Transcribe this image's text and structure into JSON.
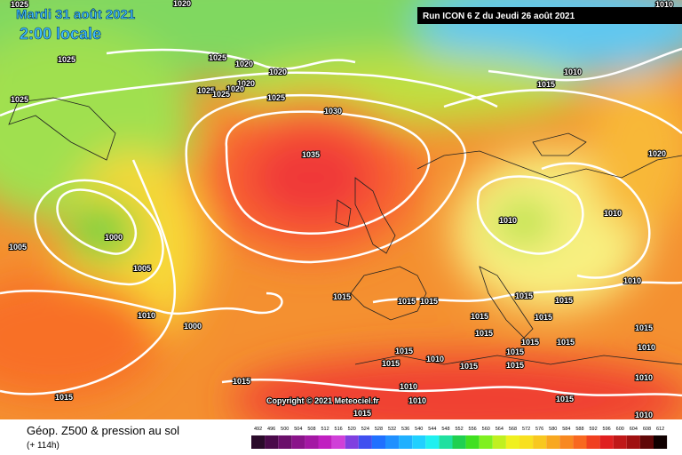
{
  "header": {
    "date": "Mardi 31 août 2021",
    "time": "2:00 locale",
    "run": "Run ICON 6 Z du Jeudi 26 août 2021"
  },
  "copyright": "Copyright © 2021 Meteociel.fr",
  "footer": {
    "title": "Géop. Z500 & pression au sol",
    "subtitle": "(+ 114h)"
  },
  "isobar_labels": [
    "1020",
    "1010",
    "1025",
    "1025",
    "1025",
    "1020",
    "1020",
    "1020",
    "1020",
    "1025",
    "1025",
    "1025",
    "1025",
    "1030",
    "1035",
    "1010",
    "1015",
    "1020",
    "1010",
    "1010",
    "1000",
    "1005",
    "1005",
    "1010",
    "1000",
    "1015",
    "1015",
    "1015",
    "1010",
    "1015",
    "1015",
    "1015",
    "1015",
    "1015",
    "1015",
    "1015",
    "1015",
    "1010",
    "1015",
    "1015",
    "1010",
    "1015",
    "1015",
    "1015",
    "1010",
    "1015",
    "1015",
    "1015",
    "1010",
    "1015",
    "1010",
    "1010"
  ],
  "scale": {
    "labels": [
      "492",
      "496",
      "500",
      "504",
      "508",
      "512",
      "516",
      "520",
      "524",
      "528",
      "532",
      "536",
      "540",
      "544",
      "548",
      "552",
      "556",
      "560",
      "564",
      "568",
      "572",
      "576",
      "580",
      "584",
      "588",
      "592",
      "596",
      "600",
      "604",
      "608",
      "612"
    ],
    "colors": [
      "#2a0a2a",
      "#4a0a4a",
      "#6a106a",
      "#8a148a",
      "#a418a4",
      "#c020c0",
      "#d040d8",
      "#8040e0",
      "#4050f0",
      "#2070ff",
      "#2090ff",
      "#20b0ff",
      "#20d0ff",
      "#20f0f0",
      "#20e0a0",
      "#20d050",
      "#40e020",
      "#80f020",
      "#c0f020",
      "#f0f020",
      "#f8e020",
      "#f8c820",
      "#f8a820",
      "#f88820",
      "#f86820",
      "#f04020",
      "#e02020",
      "#c01818",
      "#a01010",
      "#600808",
      "#100000"
    ]
  }
}
